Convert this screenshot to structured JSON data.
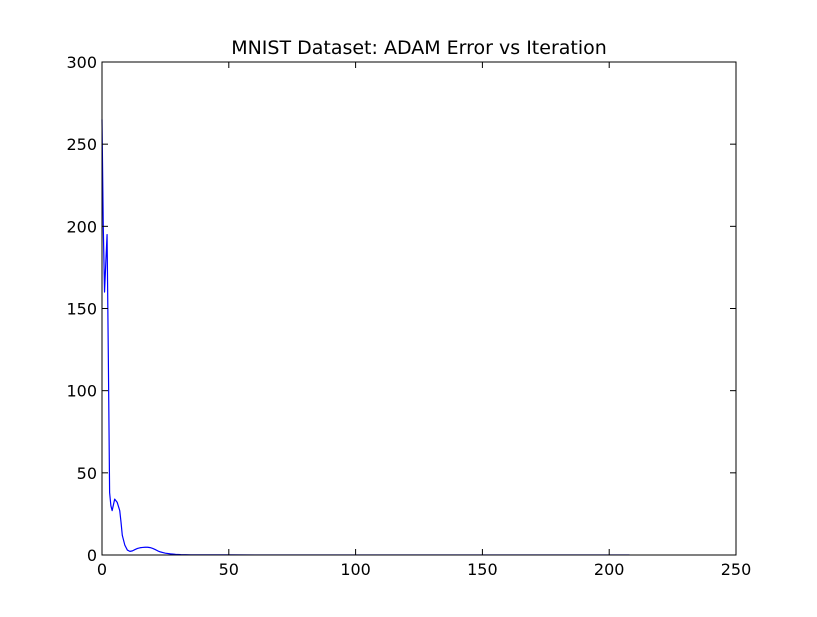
{
  "chart_data": {
    "type": "line",
    "title": "MNIST Dataset: ADAM Error vs Iteration",
    "xlabel": "",
    "ylabel": "",
    "xlim": [
      0,
      250
    ],
    "ylim": [
      0,
      300
    ],
    "xticks": [
      0,
      50,
      100,
      150,
      200,
      250
    ],
    "yticks": [
      0,
      50,
      100,
      150,
      200,
      250,
      300
    ],
    "xtick_labels": [
      "0",
      "50",
      "100",
      "150",
      "200",
      "250"
    ],
    "ytick_labels": [
      "0",
      "50",
      "100",
      "150",
      "200",
      "250",
      "300"
    ],
    "grid": false,
    "legend": "none",
    "series": [
      {
        "color": "#0000ff",
        "x": [
          0,
          0.5,
          1,
          1.5,
          2,
          2.5,
          3,
          3.5,
          4,
          5,
          6,
          7,
          7.5,
          8,
          9,
          10,
          11,
          12,
          13,
          14,
          15,
          16,
          17,
          18,
          19,
          20,
          21,
          22,
          23,
          24,
          25,
          27,
          29,
          31,
          35,
          40,
          50,
          60,
          80,
          100,
          120,
          140,
          160,
          180,
          200,
          208
        ],
        "y": [
          265,
          200,
          160,
          178,
          195,
          120,
          38,
          30,
          27,
          34,
          32,
          27,
          20,
          12,
          6,
          3,
          2.2,
          2.5,
          3.3,
          4.0,
          4.4,
          4.6,
          4.7,
          4.7,
          4.5,
          4.0,
          3.3,
          2.5,
          1.9,
          1.5,
          1.1,
          0.7,
          0.4,
          0.25,
          0.12,
          0.08,
          0.06,
          0.05,
          0.05,
          0.05,
          0.05,
          0.05,
          0.05,
          0.05,
          0.05,
          0.05
        ]
      }
    ]
  }
}
